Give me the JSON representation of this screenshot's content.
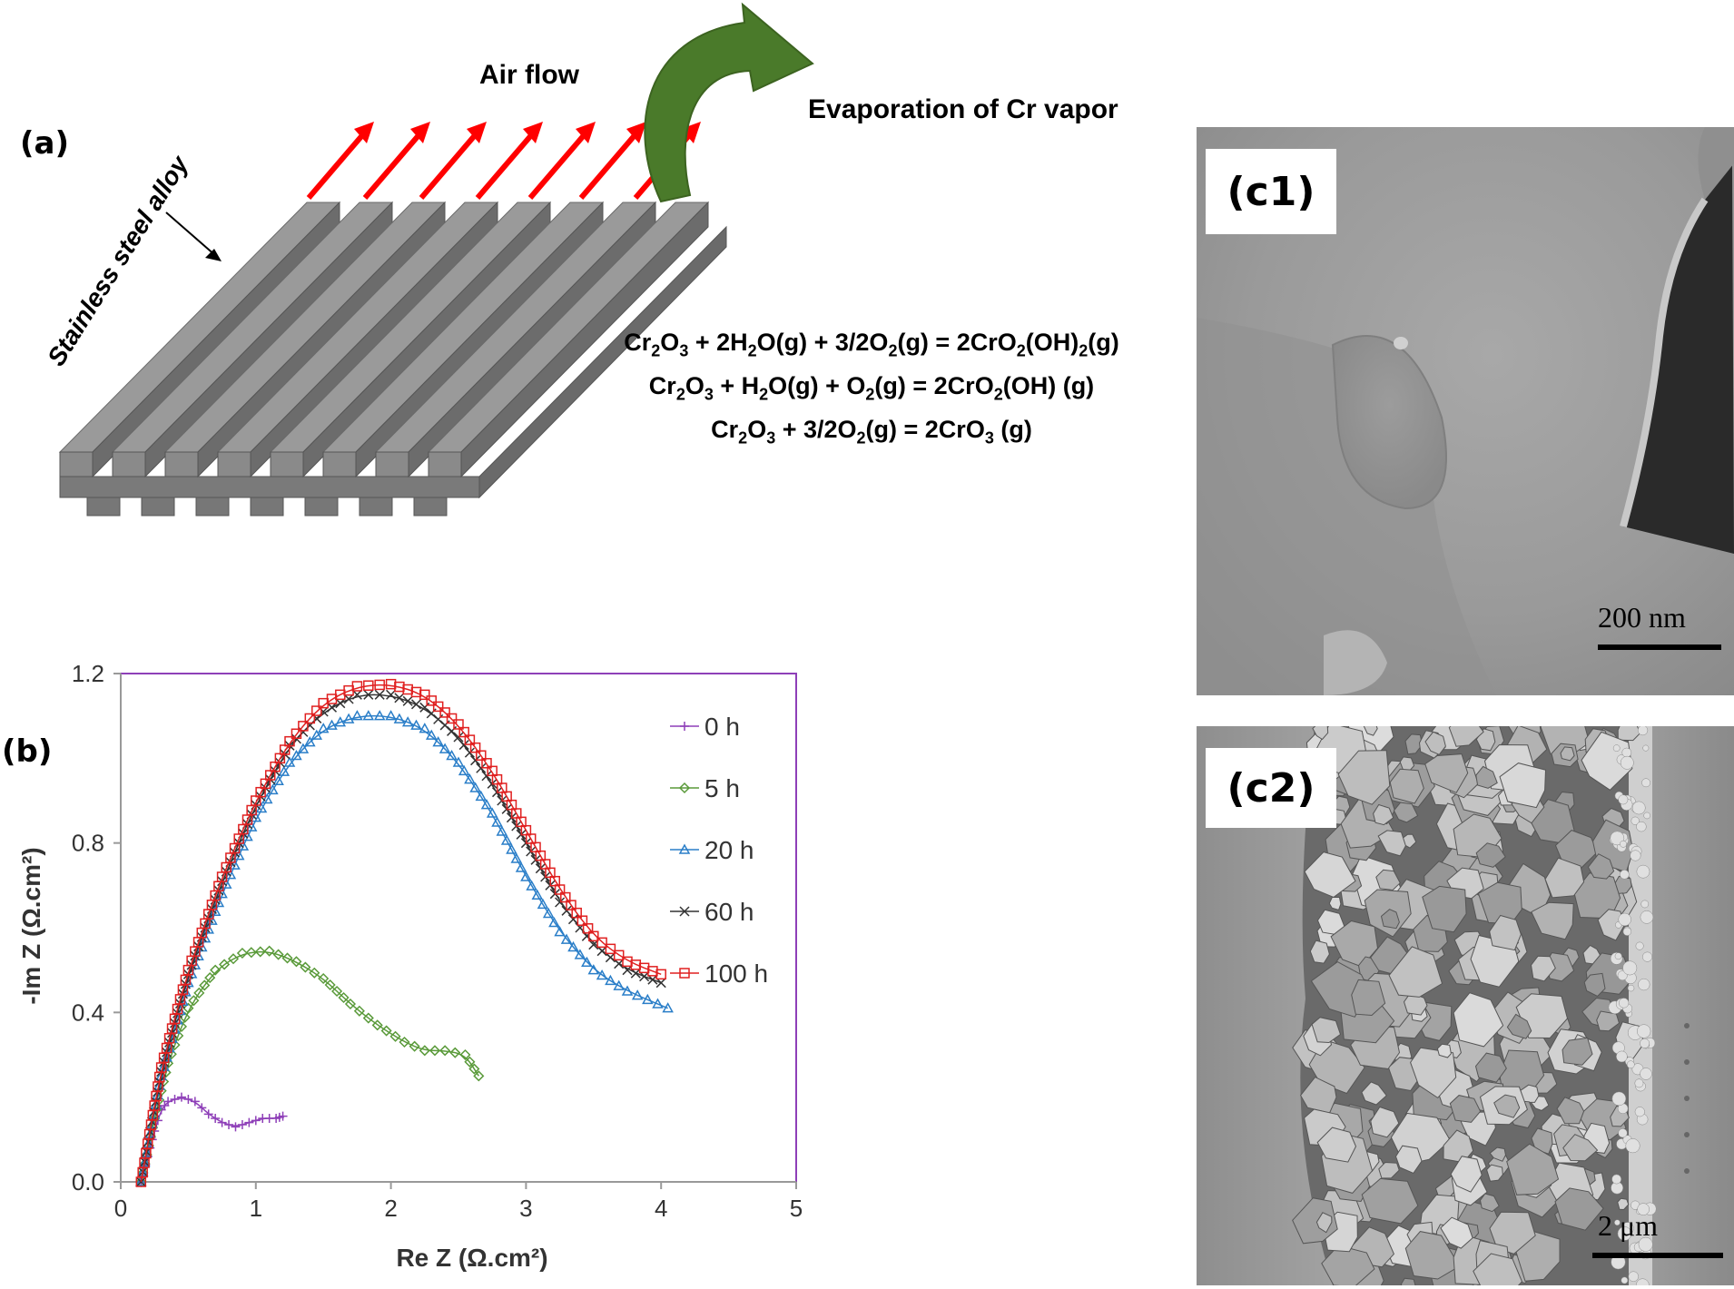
{
  "panel_a": {
    "label": "(a)",
    "alloy_label": "Stainless steel alloy",
    "airflow_label": "Air flow",
    "evaporation_label": "Evaporation of Cr vapor",
    "equations": [
      [
        "Cr",
        "2",
        "O",
        "3",
        " + 2H",
        "2",
        "O(g) + 3/2O",
        "2",
        "(g) = 2CrO",
        "2",
        "(OH)",
        "2",
        "(g)"
      ],
      [
        "Cr",
        "2",
        "O",
        "3",
        " + H",
        "2",
        "O(g) + O",
        "2",
        "(g) = 2CrO",
        "2",
        "(OH) (g)"
      ],
      [
        "Cr",
        "2",
        "O",
        "3",
        " + 3/2O",
        "2",
        "(g) = 2CrO",
        "3",
        " (g)"
      ]
    ],
    "colors": {
      "steel": "#8a8a8a",
      "airflow": "#ff0000",
      "evaporation": "#4a7a2a"
    }
  },
  "panel_b": {
    "label": "(b)",
    "chart_data": {
      "type": "scatter",
      "title": "",
      "xlabel": "Re Z (Ω.cm²)",
      "ylabel": "-Im Z (Ω.cm²)",
      "xlim": [
        0,
        5
      ],
      "ylim": [
        0,
        1.2
      ],
      "xticks": [
        "0",
        "1",
        "2",
        "3",
        "4",
        "5"
      ],
      "yticks": [
        "0.0",
        "0.4",
        "0.8",
        "1.2"
      ],
      "legend_position": "right",
      "series": [
        {
          "name": "0 h",
          "color": "#8e3fb8",
          "marker": "plus",
          "x": [
            0.15,
            0.2,
            0.25,
            0.3,
            0.35,
            0.45,
            0.55,
            0.65,
            0.75,
            0.85,
            0.95,
            1.05,
            1.15,
            1.2
          ],
          "y": [
            0.0,
            0.06,
            0.12,
            0.17,
            0.19,
            0.2,
            0.19,
            0.16,
            0.14,
            0.13,
            0.14,
            0.15,
            0.15,
            0.155
          ]
        },
        {
          "name": "5 h",
          "color": "#5a9a3a",
          "marker": "diamond",
          "x": [
            0.15,
            0.25,
            0.35,
            0.5,
            0.7,
            0.9,
            1.1,
            1.3,
            1.5,
            1.7,
            1.9,
            2.1,
            2.25,
            2.4,
            2.55,
            2.65
          ],
          "y": [
            0.0,
            0.15,
            0.28,
            0.41,
            0.5,
            0.54,
            0.545,
            0.52,
            0.48,
            0.42,
            0.37,
            0.33,
            0.31,
            0.31,
            0.3,
            0.25
          ]
        },
        {
          "name": "20 h",
          "color": "#2a7ec8",
          "marker": "triangle",
          "x": [
            0.15,
            0.3,
            0.5,
            0.75,
            1.0,
            1.25,
            1.5,
            1.75,
            2.0,
            2.25,
            2.5,
            2.75,
            3.0,
            3.25,
            3.5,
            3.75,
            4.05
          ],
          "y": [
            0.0,
            0.25,
            0.47,
            0.68,
            0.86,
            0.99,
            1.07,
            1.1,
            1.1,
            1.07,
            0.99,
            0.87,
            0.72,
            0.59,
            0.5,
            0.45,
            0.41
          ]
        },
        {
          "name": "60 h",
          "color": "#333333",
          "marker": "cross",
          "x": [
            0.15,
            0.3,
            0.5,
            0.75,
            1.0,
            1.25,
            1.5,
            1.75,
            2.0,
            2.25,
            2.5,
            2.75,
            3.0,
            3.25,
            3.5,
            3.75,
            4.0
          ],
          "y": [
            0.0,
            0.26,
            0.49,
            0.71,
            0.89,
            1.03,
            1.11,
            1.15,
            1.15,
            1.12,
            1.05,
            0.94,
            0.8,
            0.66,
            0.56,
            0.5,
            0.47
          ]
        },
        {
          "name": "100 h",
          "color": "#e02020",
          "marker": "square",
          "x": [
            0.15,
            0.3,
            0.5,
            0.75,
            1.0,
            1.25,
            1.5,
            1.75,
            2.0,
            2.25,
            2.5,
            2.75,
            3.0,
            3.25,
            3.5,
            3.75,
            4.0
          ],
          "y": [
            0.0,
            0.27,
            0.5,
            0.72,
            0.9,
            1.04,
            1.13,
            1.17,
            1.175,
            1.15,
            1.08,
            0.97,
            0.83,
            0.69,
            0.58,
            0.52,
            0.49
          ]
        }
      ]
    }
  },
  "panel_c1": {
    "label": "(c1)",
    "scale": "200 nm"
  },
  "panel_c2": {
    "label": "(c2)",
    "scale": "2 μm"
  }
}
